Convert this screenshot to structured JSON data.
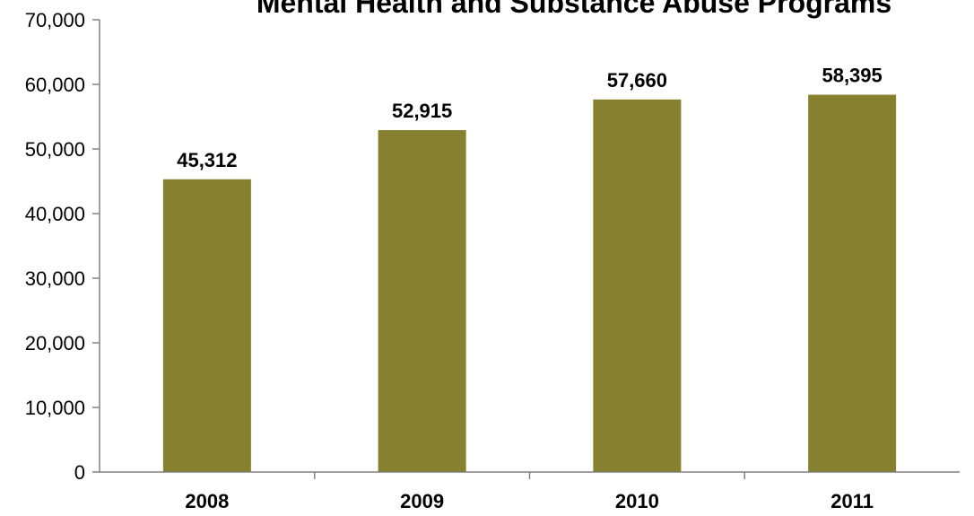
{
  "chart_data": {
    "type": "bar",
    "title": "Mental Health and Substance Abuse Programs",
    "xlabel": "",
    "ylabel": "",
    "categories": [
      "2008",
      "2009",
      "2010",
      "2011"
    ],
    "values": [
      45312,
      52915,
      57660,
      58395
    ],
    "data_labels": [
      "45,312",
      "52,915",
      "57,660",
      "58,395"
    ],
    "ylim": [
      0,
      70000
    ],
    "y_ticks": [
      0,
      10000,
      20000,
      30000,
      40000,
      50000,
      60000,
      70000
    ],
    "y_tick_labels": [
      "0",
      "10,000",
      "20,000",
      "30,000",
      "40,000",
      "50,000",
      "60,000",
      "70,000"
    ],
    "grid": false,
    "legend": "none",
    "bar_color": "#87812F"
  }
}
